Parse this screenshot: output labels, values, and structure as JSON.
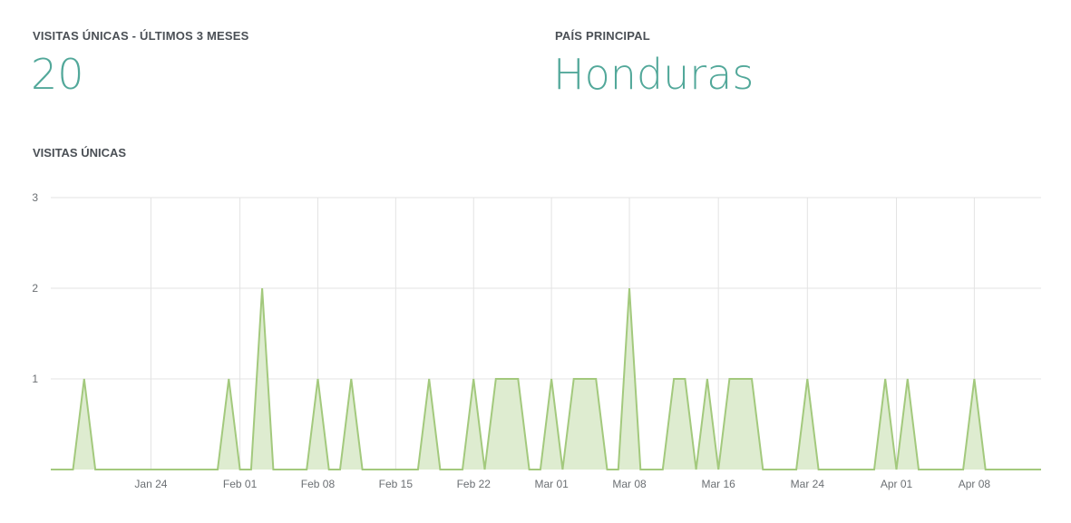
{
  "stats": {
    "visits_label": "VISITAS ÚNICAS - ÚLTIMOS 3 MESES",
    "visits_value": "20",
    "country_label": "PAÍS PRINCIPAL",
    "country_value": "Honduras"
  },
  "chart_title": "VISITAS ÚNICAS",
  "colors": {
    "accent": "#52a89a",
    "line": "#a3c97d",
    "fill": "#deecd0",
    "grid": "#e3e3e3"
  },
  "chart_data": {
    "type": "area",
    "title": "VISITAS ÚNICAS",
    "xlabel": "",
    "ylabel": "",
    "x_start": "Jan 15",
    "x_end": "Apr 14",
    "ylim": [
      0,
      3
    ],
    "yticks": [
      1,
      2,
      3
    ],
    "xticks": [
      {
        "label": "Jan 24",
        "date": "Jan 24"
      },
      {
        "label": "Feb 01",
        "date": "Feb 01"
      },
      {
        "label": "Feb 08",
        "date": "Feb 08"
      },
      {
        "label": "Feb 15",
        "date": "Feb 15"
      },
      {
        "label": "Feb 22",
        "date": "Feb 22"
      },
      {
        "label": "Mar 01",
        "date": "Mar 01"
      },
      {
        "label": "Mar 08",
        "date": "Mar 08"
      },
      {
        "label": "Mar 16",
        "date": "Mar 16"
      },
      {
        "label": "Mar 24",
        "date": "Mar 24"
      },
      {
        "label": "Apr 01",
        "date": "Apr 01"
      },
      {
        "label": "Apr 08",
        "date": "Apr 08"
      }
    ],
    "grid": true,
    "series": [
      {
        "points": [
          {
            "x": "Jan 18",
            "y": 1
          },
          {
            "x": "Jan 31",
            "y": 1
          },
          {
            "x": "Feb 03",
            "y": 2
          },
          {
            "x": "Feb 08",
            "y": 1
          },
          {
            "x": "Feb 11",
            "y": 1
          },
          {
            "x": "Feb 18",
            "y": 1
          },
          {
            "x": "Feb 22",
            "y": 1
          },
          {
            "x": "Feb 24",
            "y": 1
          },
          {
            "x": "Feb 25",
            "y": 1
          },
          {
            "x": "Feb 26",
            "y": 1
          },
          {
            "x": "Mar 01",
            "y": 1
          },
          {
            "x": "Mar 03",
            "y": 1
          },
          {
            "x": "Mar 04",
            "y": 1
          },
          {
            "x": "Mar 05",
            "y": 1
          },
          {
            "x": "Mar 08",
            "y": 2
          },
          {
            "x": "Mar 12",
            "y": 1
          },
          {
            "x": "Mar 13",
            "y": 1
          },
          {
            "x": "Mar 15",
            "y": 1
          },
          {
            "x": "Mar 17",
            "y": 1
          },
          {
            "x": "Mar 18",
            "y": 1
          },
          {
            "x": "Mar 19",
            "y": 1
          },
          {
            "x": "Mar 24",
            "y": 1
          },
          {
            "x": "Mar 31",
            "y": 1
          },
          {
            "x": "Apr 02",
            "y": 1
          },
          {
            "x": "Apr 08",
            "y": 1
          }
        ]
      }
    ]
  }
}
